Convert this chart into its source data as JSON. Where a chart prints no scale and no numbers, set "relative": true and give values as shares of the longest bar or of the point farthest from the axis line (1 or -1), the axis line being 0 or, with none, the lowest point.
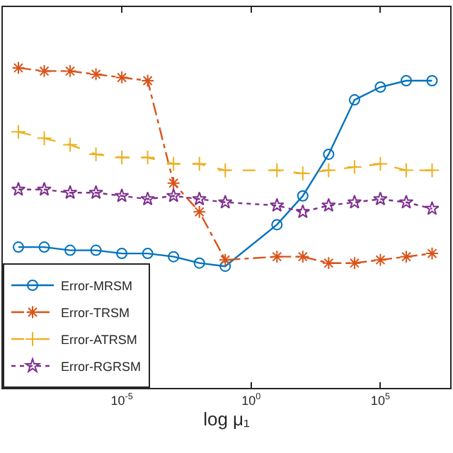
{
  "chart_data": {
    "type": "line",
    "relative": true,
    "log": "x",
    "xlabel": "log μ₁",
    "x": [
      1e-09,
      1e-08,
      1e-07,
      1e-06,
      1e-05,
      0.0001,
      0.001,
      0.01,
      0.1,
      10.0,
      100.0,
      1000.0,
      10000.0,
      100000.0,
      1000000.0,
      10000000.0
    ],
    "xlim": [
      2.5e-10,
      50000000.0
    ],
    "xticks": [
      {
        "value": 1e-05,
        "label": "10$^{-5}$"
      },
      {
        "value": 1,
        "label": "10$^{0}$"
      },
      {
        "value": 100000.0,
        "label": "10$^{5}$"
      }
    ],
    "legend": "bottom left",
    "series": [
      {
        "name": "Error-MRSM",
        "color": "#0072bd",
        "marker": "circle",
        "line_style": "solid",
        "values": [
          0.44,
          0.44,
          0.43,
          0.43,
          0.42,
          0.42,
          0.41,
          0.39,
          0.38,
          0.51,
          0.6,
          0.73,
          0.9,
          0.94,
          0.96,
          0.96
        ]
      },
      {
        "name": "Error-TRSM",
        "color": "#d95319",
        "marker": "cross",
        "line_style": "dashdot",
        "values": [
          1,
          0.99,
          0.99,
          0.98,
          0.97,
          0.96,
          0.64,
          0.55,
          0.4,
          0.41,
          0.41,
          0.39,
          0.39,
          0.4,
          0.41,
          0.42
        ]
      },
      {
        "name": "Error-ATRSM",
        "color": "#edb120",
        "marker": "cross",
        "line_style": "dashed",
        "values": [
          0.8,
          0.78,
          0.76,
          0.73,
          0.72,
          0.72,
          0.7,
          0.7,
          0.68,
          0.68,
          0.67,
          0.68,
          0.69,
          0.7,
          0.68,
          0.68
        ]
      },
      {
        "name": "Error-RGRSM",
        "color": "#7e2f8e",
        "marker": "star",
        "line_style": "dotted",
        "values": [
          0.62,
          0.62,
          0.61,
          0.61,
          0.6,
          0.59,
          0.6,
          0.59,
          0.58,
          0.57,
          0.55,
          0.57,
          0.58,
          0.59,
          0.58,
          0.56
        ]
      }
    ]
  }
}
